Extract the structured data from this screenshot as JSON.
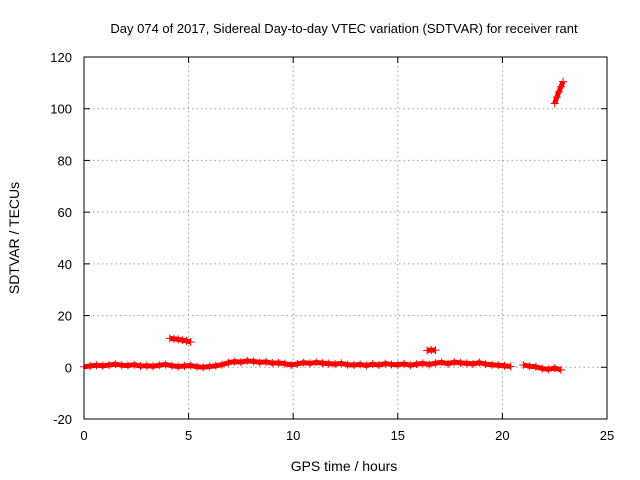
{
  "chart_data": {
    "type": "scatter",
    "title": "Day 074 of 2017, Sidereal Day-to-day VTEC variation (SDTVAR) for receiver rant",
    "xlabel": "GPS time / hours",
    "ylabel": "SDTVAR / TECUs",
    "xlim": [
      0,
      25
    ],
    "ylim": [
      -20,
      120
    ],
    "xticks": [
      "0",
      "5",
      "10",
      "15",
      "20",
      "25"
    ],
    "yticks": [
      "-20",
      "0",
      "20",
      "40",
      "60",
      "80",
      "100",
      "120"
    ],
    "grid": true,
    "marker": "plus",
    "color": "#ff0000",
    "series": [
      {
        "x": [
          0.0,
          0.3,
          0.6,
          0.9,
          1.2,
          1.5,
          1.8,
          2.1,
          2.4,
          2.7,
          3.0,
          3.3,
          3.6,
          3.9,
          4.2,
          4.5,
          4.8,
          5.1,
          5.4,
          5.7,
          6.0,
          6.3,
          6.6,
          6.9,
          7.2,
          7.5,
          7.8,
          8.1,
          8.4,
          8.7,
          9.0,
          9.3,
          9.6,
          9.9,
          10.2,
          10.5,
          10.8,
          11.1,
          11.4,
          11.7,
          12.0,
          12.3,
          12.6,
          12.9,
          13.2,
          13.5,
          13.8,
          14.1,
          14.4,
          14.7,
          15.0,
          15.3,
          15.6,
          15.9,
          16.2,
          16.5,
          16.8,
          17.1,
          17.4,
          17.7,
          18.0,
          18.3,
          18.6,
          18.9,
          19.2,
          19.5,
          19.8,
          20.1,
          20.4,
          21.0,
          21.3,
          21.6,
          21.9,
          22.2,
          22.5,
          22.8
        ],
        "y": [
          0.2,
          0.5,
          0.8,
          0.6,
          0.9,
          1.2,
          0.8,
          0.7,
          1.0,
          0.5,
          0.6,
          0.4,
          0.8,
          1.1,
          0.6,
          0.3,
          0.5,
          0.7,
          0.2,
          0.0,
          0.3,
          0.6,
          1.0,
          1.8,
          2.2,
          2.0,
          2.5,
          2.3,
          1.9,
          2.1,
          1.6,
          1.7,
          1.4,
          0.9,
          1.3,
          1.8,
          1.5,
          1.9,
          1.6,
          1.4,
          1.2,
          1.5,
          1.0,
          0.9,
          1.1,
          0.7,
          1.2,
          0.9,
          1.4,
          1.1,
          1.0,
          1.3,
          0.8,
          1.2,
          1.5,
          1.1,
          1.6,
          1.9,
          1.4,
          2.0,
          1.7,
          1.5,
          1.3,
          1.8,
          1.2,
          1.0,
          0.8,
          0.6,
          0.3,
          0.9,
          0.4,
          0.2,
          -0.5,
          -0.8,
          -0.3,
          -1.0
        ]
      },
      {
        "x": [
          4.1,
          4.3,
          4.5,
          4.7,
          4.9,
          5.1
        ],
        "y": [
          11.2,
          11.0,
          10.8,
          10.5,
          10.2,
          9.8
        ]
      },
      {
        "x": [
          16.4,
          16.6,
          16.8
        ],
        "y": [
          6.5,
          6.7,
          6.6
        ]
      },
      {
        "x": [
          22.5,
          22.6,
          22.7,
          22.8,
          22.9
        ],
        "y": [
          102.0,
          104.5,
          106.5,
          108.5,
          110.5
        ]
      }
    ]
  }
}
